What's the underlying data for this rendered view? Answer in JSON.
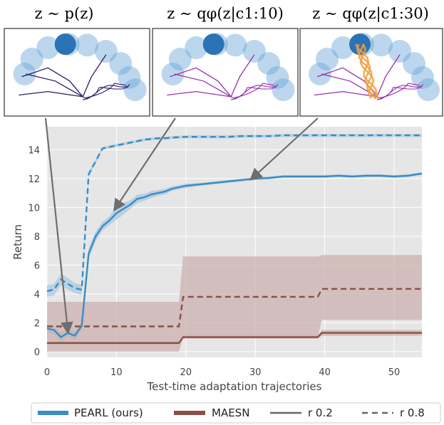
{
  "panels": [
    {
      "title": "z ∼ p(z)"
    },
    {
      "title": "z ∼ qφ(z|c1:10)"
    },
    {
      "title": "z ∼ qφ(z|c1:30)"
    }
  ],
  "legend": {
    "items": [
      "PEARL (ours)",
      "MAESN",
      "r 0.2",
      "r 0.8"
    ]
  },
  "colors": {
    "pearl": "#3a8cc4",
    "maesn": "#8c4f45",
    "maesn_band": "#c9ada9",
    "pearl_band": "#a9c9e0",
    "plot_bg": "#e6e6e6",
    "grid": "#ffffff",
    "arrow": "#6e6e6e",
    "goal": "#2b73b5",
    "trail_dark": "#2c1a6b",
    "trail_purple": "#9a2fb0",
    "trail_orange": "#f0a040"
  },
  "chart_data": {
    "type": "line",
    "xlabel": "Test-time adaptation trajectories",
    "ylabel": "Return",
    "xlim": [
      0,
      54
    ],
    "ylim": [
      -0.4,
      15.6
    ],
    "xticks": [
      0,
      10,
      20,
      30,
      40,
      50
    ],
    "yticks": [
      0,
      2,
      4,
      6,
      8,
      10,
      12,
      14
    ],
    "grid": true,
    "legend_position": "bottom",
    "series": [
      {
        "name": "PEARL (ours)",
        "style": "solid",
        "x": [
          0,
          1,
          2,
          3,
          4,
          5,
          6,
          7,
          8,
          9,
          10,
          11,
          12,
          13,
          14,
          15,
          16,
          17,
          18,
          19,
          20,
          22,
          24,
          26,
          28,
          30,
          32,
          34,
          36,
          38,
          40,
          42,
          44,
          46,
          48,
          50,
          52,
          54
        ],
        "y": [
          1.6,
          1.5,
          1.0,
          1.3,
          1.1,
          1.8,
          6.8,
          8.0,
          8.7,
          9.1,
          9.6,
          9.9,
          10.2,
          10.6,
          10.7,
          10.9,
          11.0,
          11.1,
          11.3,
          11.4,
          11.5,
          11.6,
          11.7,
          11.8,
          11.9,
          12.0,
          12.05,
          12.15,
          12.15,
          12.15,
          12.15,
          12.2,
          12.15,
          12.2,
          12.2,
          12.15,
          12.2,
          12.35
        ],
        "band": [
          0.3,
          0.3,
          0.3,
          0.3,
          0.3,
          0.3,
          0.35,
          0.35,
          0.3,
          0.3,
          0.45,
          0.4,
          0.3,
          0.3,
          0.25,
          0.25,
          0.2,
          0.2,
          0.15,
          0.15,
          0.15,
          0.1,
          0.1,
          0.1,
          0.1,
          0.1,
          0.1,
          0.1,
          0.1,
          0.1,
          0.1,
          0.1,
          0.1,
          0.1,
          0.1,
          0.1,
          0.1,
          0.1
        ]
      },
      {
        "name": "PEARL (ours)",
        "style": "dashed",
        "x": [
          0,
          1,
          2,
          3,
          4,
          5,
          6,
          7,
          8,
          9,
          10,
          11,
          12,
          13,
          14,
          15,
          16,
          17,
          18,
          20,
          22,
          24,
          26,
          28,
          30,
          32,
          34,
          36,
          38,
          40,
          42,
          44,
          46,
          48,
          50,
          52,
          54
        ],
        "y": [
          4.2,
          4.3,
          5.0,
          4.7,
          4.4,
          4.3,
          12.3,
          13.2,
          14.1,
          14.2,
          14.3,
          14.4,
          14.5,
          14.6,
          14.7,
          14.75,
          14.8,
          14.8,
          14.85,
          14.9,
          14.9,
          14.9,
          14.9,
          14.95,
          14.95,
          14.95,
          15.0,
          15.0,
          15.0,
          15.0,
          15.0,
          15.0,
          15.0,
          15.0,
          15.0,
          15.0,
          15.0
        ],
        "band": [
          0.4,
          0.4,
          0.4,
          0.4,
          0.35,
          0.35,
          0.2,
          0.15,
          0.1,
          0.1,
          0.1,
          0.1,
          0.1,
          0.1,
          0.1,
          0.1,
          0.1,
          0.1,
          0.1,
          0.1,
          0.1,
          0.1,
          0.1,
          0.1,
          0.1,
          0.1,
          0.1,
          0.1,
          0.1,
          0.1,
          0.1,
          0.1,
          0.1,
          0.1,
          0.1,
          0.1,
          0.1
        ]
      },
      {
        "name": "MAESN",
        "style": "solid",
        "x": [
          0,
          19,
          19.6,
          39,
          39.6,
          54
        ],
        "y": [
          0.6,
          0.6,
          1.0,
          1.0,
          1.3,
          1.3
        ],
        "band_lo": [
          0.5,
          0.5,
          0.9,
          0.9,
          1.1,
          1.1
        ],
        "band_hi": [
          0.7,
          0.7,
          1.1,
          1.1,
          1.5,
          1.5
        ]
      },
      {
        "name": "MAESN",
        "style": "dashed",
        "x": [
          0,
          19,
          19.6,
          39,
          39.6,
          54
        ],
        "y": [
          1.75,
          1.75,
          3.8,
          3.8,
          4.35,
          4.35
        ],
        "band_lo": [
          0.0,
          0.0,
          1.0,
          1.0,
          2.2,
          2.2
        ],
        "band_hi": [
          3.45,
          3.45,
          6.6,
          6.6,
          6.7,
          6.7
        ]
      }
    ],
    "annotations": [
      {
        "from_panel": 0,
        "to_x": 3.0,
        "to_y": 1.4
      },
      {
        "from_panel": 1,
        "to_x": 9.8,
        "to_y": 9.9
      },
      {
        "from_panel": 2,
        "to_x": 29.5,
        "to_y": 12.0
      }
    ]
  }
}
